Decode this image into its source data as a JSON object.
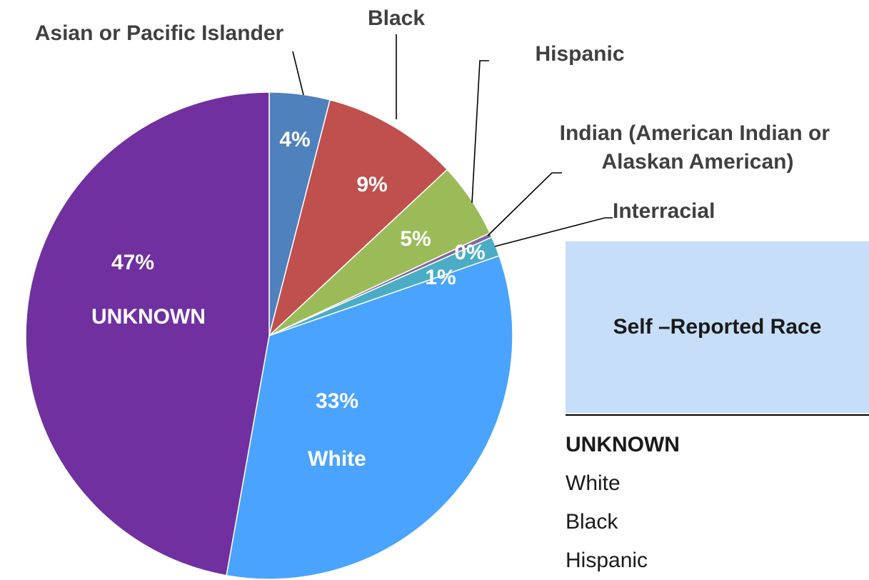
{
  "chart_data": {
    "type": "pie",
    "title": "Self –Reported Race",
    "slices": [
      {
        "name": "Asian or Pacific Islander",
        "value": 4,
        "label": "4%",
        "color": "#4f81bd"
      },
      {
        "name": "Black",
        "value": 9,
        "label": "9%",
        "color": "#c0504d"
      },
      {
        "name": "Hispanic",
        "value": 5,
        "label": "5%",
        "color": "#9bbb59"
      },
      {
        "name": "Indian (American Indian or Alaskan American)",
        "value": 0.3,
        "label": "0%",
        "color": "#8064a2"
      },
      {
        "name": "Interracial",
        "value": 1.3,
        "label": "1%",
        "color": "#4bacc6"
      },
      {
        "name": "White",
        "value": 33,
        "label": "33%",
        "color": "#4aa3ff"
      },
      {
        "name": "UNKNOWN",
        "value": 47,
        "label": "47%",
        "color": "#7030a0"
      }
    ],
    "legend": [
      "UNKNOWN",
      "White",
      "Black",
      "Hispanic"
    ],
    "legend_position": "right"
  }
}
